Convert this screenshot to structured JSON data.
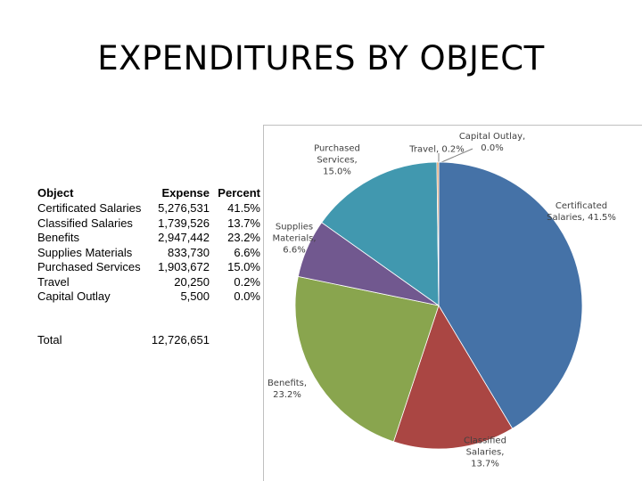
{
  "title": "EXPENDITURES BY OBJECT",
  "table": {
    "headers": [
      "Object",
      "Expense",
      "Percent"
    ],
    "rows": [
      [
        "Certificated Salaries",
        "5,276,531",
        "41.5%"
      ],
      [
        "Classified Salaries",
        "1,739,526",
        "13.7%"
      ],
      [
        "Benefits",
        "2,947,442",
        "23.2%"
      ],
      [
        "Supplies Materials",
        "833,730",
        "6.6%"
      ],
      [
        "Purchased Services",
        "1,903,672",
        "15.0%"
      ],
      [
        "Travel",
        "20,250",
        "0.2%"
      ],
      [
        "Capital Outlay",
        "5,500",
        "0.0%"
      ]
    ],
    "total": [
      "Total",
      "12,726,651"
    ]
  },
  "chart_data": {
    "type": "pie",
    "categories": [
      "Certificated Salaries",
      "Classified Salaries",
      "Benefits",
      "Supplies Materials",
      "Purchased Services",
      "Travel",
      "Capital Outlay"
    ],
    "values": [
      41.5,
      13.7,
      23.2,
      6.6,
      15.0,
      0.2,
      0.0
    ],
    "value_labels": [
      "Certificated Salaries, 41.5%",
      "Classified Salaries, 13.7%",
      "Benefits, 23.2%",
      "Supplies Materials, 6.6%",
      "Purchased Services, 15.0%",
      "Travel, 0.2%",
      "Capital Outlay, 0.0%"
    ],
    "colors": [
      "#4572a7",
      "#aa4643",
      "#89a54e",
      "#71588f",
      "#4198af",
      "#db843d",
      "#93a9cf"
    ]
  }
}
